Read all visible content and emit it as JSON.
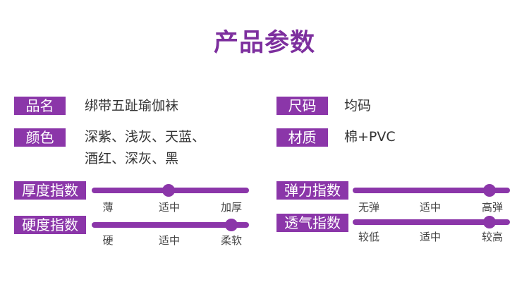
{
  "title": "产品参数",
  "accent": "#8b36a9",
  "params": {
    "name": {
      "label": "品名",
      "value": "绑带五趾瑜伽袜"
    },
    "size": {
      "label": "尺码",
      "value": "均码"
    },
    "color": {
      "label": "颜色",
      "line1": "深紫、浅灰、天蓝、",
      "line2": "酒红、深灰、黑"
    },
    "material": {
      "label": "材质",
      "value": "棉+PVC"
    }
  },
  "sliders": [
    {
      "label": "厚度指数",
      "level_percent": 49,
      "ticks": [
        "薄",
        "适中",
        "加厚"
      ]
    },
    {
      "label": "硬度指数",
      "level_percent": 89,
      "ticks": [
        "硬",
        "适中",
        "柔软"
      ]
    },
    {
      "label": "弹力指数",
      "level_percent": 87,
      "ticks": [
        "无弹",
        "适中",
        "高弹"
      ]
    },
    {
      "label": "透气指数",
      "level_percent": 87,
      "ticks": [
        "较低",
        "适中",
        "较高"
      ]
    }
  ]
}
